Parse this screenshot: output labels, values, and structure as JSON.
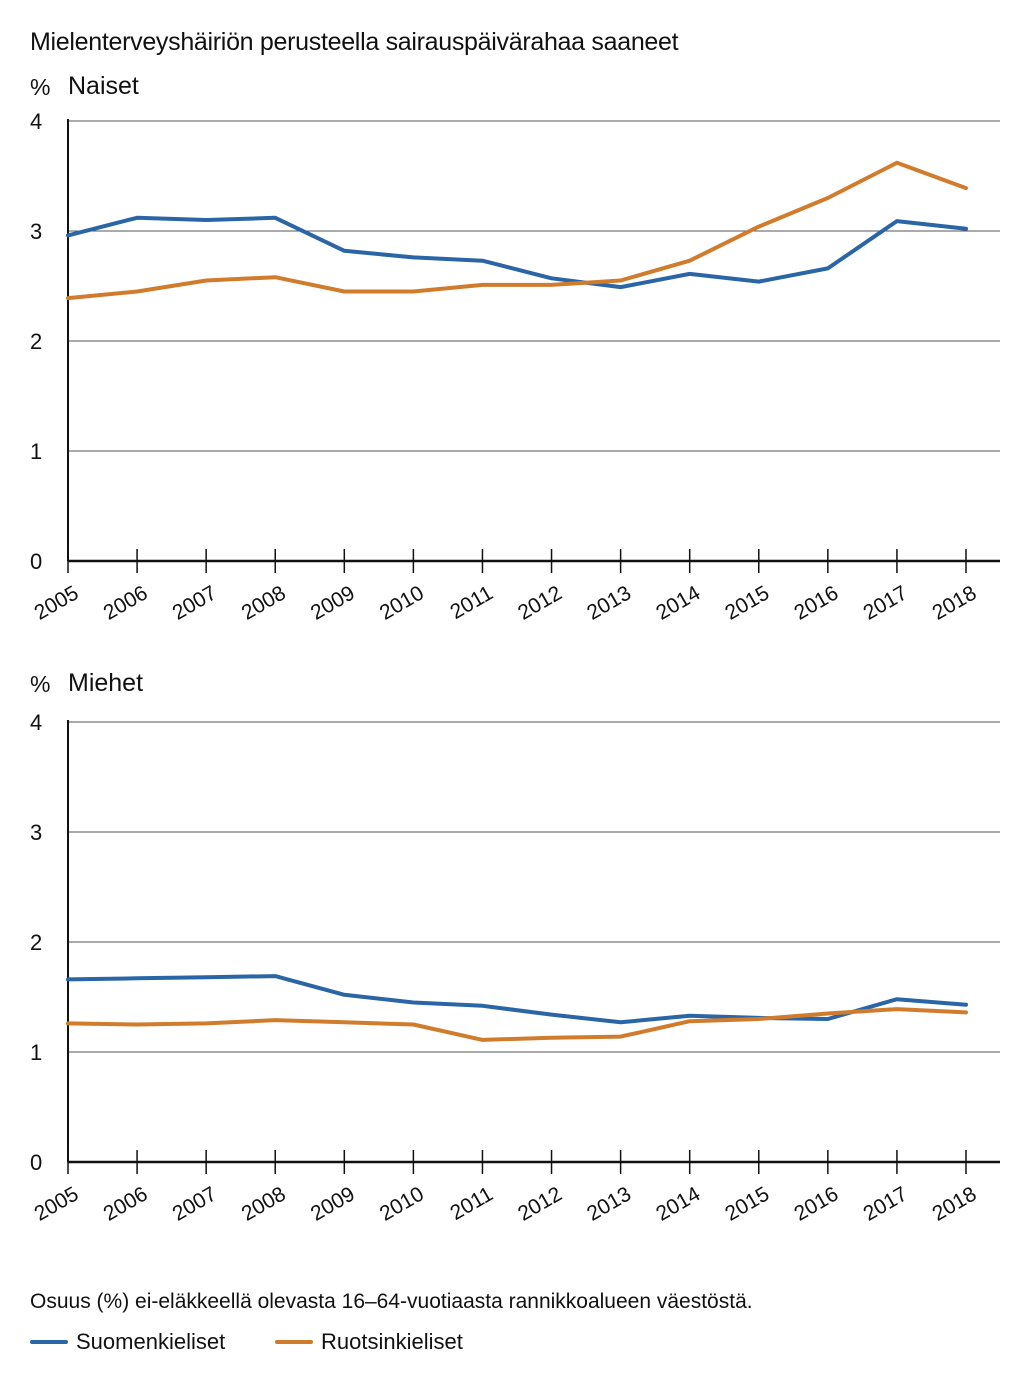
{
  "title": "Mielenterveyshäiriön perusteella sairauspäivärahaa saaneet",
  "note": "Osuus (%) ei-eläkkeellä olevasta 16–64-vuotiaasta rannikkoalueen väestöstä.",
  "legend": [
    {
      "label": "Suomenkieliset",
      "color": "#2a65a6"
    },
    {
      "label": "Ruotsinkieliset",
      "color": "#d07c2c"
    }
  ],
  "chart_data": [
    {
      "type": "line",
      "title": "Naiset",
      "ylabel": "%",
      "ylim": [
        0,
        4
      ],
      "yticks": [
        "0",
        "1",
        "2",
        "3",
        "4"
      ],
      "grid": true,
      "x": [
        "2005",
        "2006",
        "2007",
        "2008",
        "2009",
        "2010",
        "2011",
        "2012",
        "2013",
        "2014",
        "2015",
        "2016",
        "2017",
        "2018"
      ],
      "series": [
        {
          "name": "Suomenkieliset",
          "color": "#2a65a6",
          "values": [
            2.96,
            3.12,
            3.1,
            3.12,
            2.82,
            2.76,
            2.73,
            2.57,
            2.49,
            2.61,
            2.54,
            2.66,
            3.09,
            3.02
          ]
        },
        {
          "name": "Ruotsinkieliset",
          "color": "#d07c2c",
          "values": [
            2.39,
            2.45,
            2.55,
            2.58,
            2.45,
            2.45,
            2.51,
            2.51,
            2.55,
            2.73,
            3.04,
            3.3,
            3.62,
            3.39
          ]
        }
      ]
    },
    {
      "type": "line",
      "title": "Miehet",
      "ylabel": "%",
      "ylim": [
        0,
        4
      ],
      "yticks": [
        "0",
        "1",
        "2",
        "3",
        "4"
      ],
      "grid": true,
      "x": [
        "2005",
        "2006",
        "2007",
        "2008",
        "2009",
        "2010",
        "2011",
        "2012",
        "2013",
        "2014",
        "2015",
        "2016",
        "2017",
        "2018"
      ],
      "series": [
        {
          "name": "Suomenkieliset",
          "color": "#2a65a6",
          "values": [
            1.66,
            1.67,
            1.68,
            1.69,
            1.52,
            1.45,
            1.42,
            1.34,
            1.27,
            1.33,
            1.31,
            1.3,
            1.48,
            1.43
          ]
        },
        {
          "name": "Ruotsinkieliset",
          "color": "#d07c2c",
          "values": [
            1.26,
            1.25,
            1.26,
            1.29,
            1.27,
            1.25,
            1.11,
            1.13,
            1.14,
            1.28,
            1.3,
            1.35,
            1.39,
            1.36
          ]
        }
      ]
    }
  ]
}
